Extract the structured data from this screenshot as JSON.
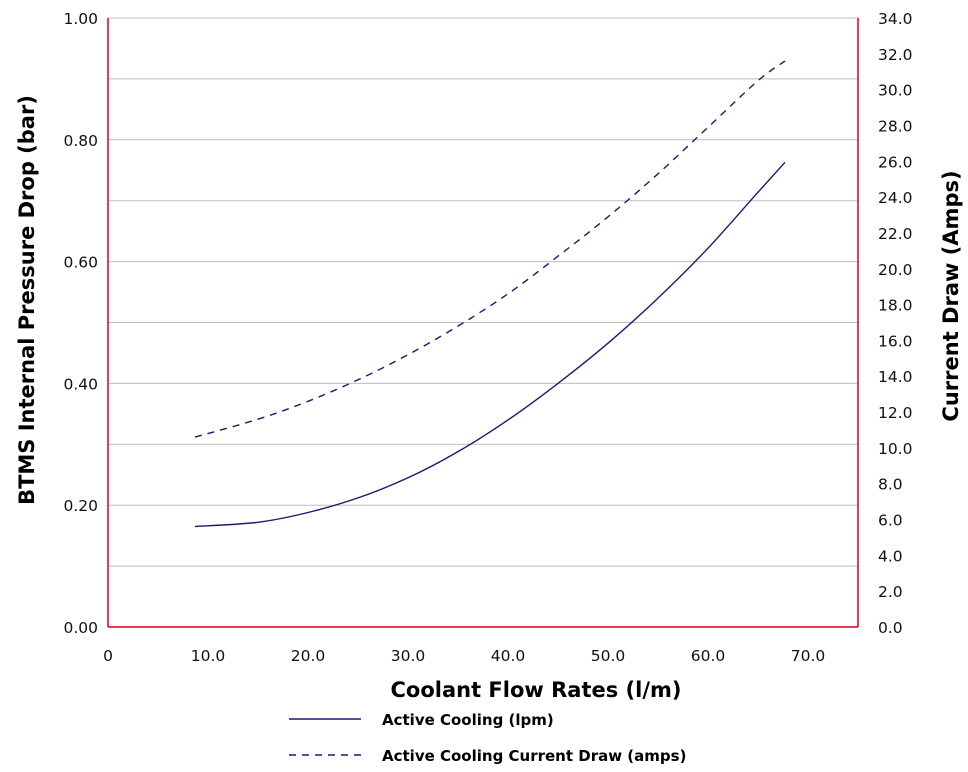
{
  "chart_data": {
    "type": "line",
    "title": "",
    "xlabel": "Coolant Flow Rates (l/m)",
    "ylabel": "BTMS Internal Pressure Drop (bar)",
    "y2label": "Current Draw (Amps)",
    "xlim": [
      0,
      75
    ],
    "ylim": [
      0,
      1.0
    ],
    "y2lim": [
      0,
      34.0
    ],
    "grid": true,
    "legend_position": "bottom",
    "x_ticks": [
      "0",
      "10.0",
      "20.0",
      "30.0",
      "40.0",
      "50.0",
      "60.0",
      "70.0"
    ],
    "y_ticks": [
      "0.00",
      "0.20",
      "0.40",
      "0.60",
      "0.80",
      "1.00"
    ],
    "y2_ticks": [
      "0.0",
      "2.0",
      "4.0",
      "6.0",
      "8.0",
      "10.0",
      "12.0",
      "14.0",
      "16.0",
      "18.0",
      "20.0",
      "22.0",
      "24.0",
      "26.0",
      "28.0",
      "30.0",
      "32.0",
      "34.0"
    ],
    "series": [
      {
        "name": "Active Cooling (lpm)",
        "axis": "left",
        "style": "solid",
        "color": "#1a1a6e",
        "x": [
          8.7,
          15,
          20,
          25,
          30,
          35,
          40,
          45,
          50,
          55,
          60,
          65,
          67.7
        ],
        "y": [
          0.165,
          0.172,
          0.188,
          0.212,
          0.245,
          0.288,
          0.34,
          0.4,
          0.466,
          0.54,
          0.622,
          0.714,
          0.763
        ]
      },
      {
        "name": "Active Cooling Current Draw (amps)",
        "axis": "right",
        "style": "dashed",
        "color": "#1a1a6e",
        "x": [
          8.7,
          15,
          20,
          25,
          30,
          35,
          40,
          45,
          50,
          55,
          60,
          65,
          67.7
        ],
        "y": [
          10.6,
          11.6,
          12.6,
          13.8,
          15.2,
          16.8,
          18.6,
          20.7,
          22.9,
          25.3,
          27.9,
          30.5,
          31.6
        ]
      }
    ]
  },
  "colors": {
    "axis": "#d6001c",
    "grid": "#bdbdbd",
    "series": "#1a1a6e"
  }
}
